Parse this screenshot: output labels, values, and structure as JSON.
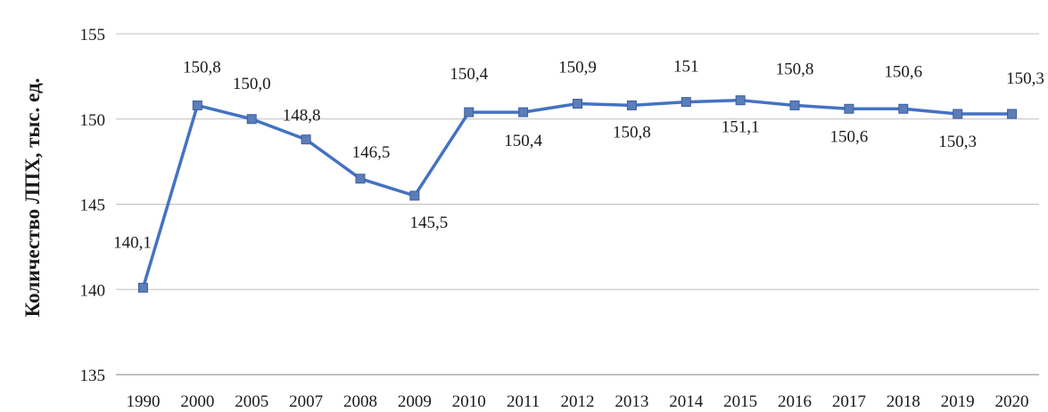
{
  "chart_data": {
    "type": "line",
    "title": "",
    "xlabel": "",
    "ylabel": "Количество ЛПХ, тыс. ед.",
    "ylim": [
      135,
      155
    ],
    "yticks": [
      "135",
      "140",
      "145",
      "150",
      "155"
    ],
    "categories": [
      "1990",
      "2000",
      "2005",
      "2007",
      "2008",
      "2009",
      "2010",
      "2011",
      "2012",
      "2013",
      "2014",
      "2015",
      "2016",
      "2017",
      "2018",
      "2019",
      "2020"
    ],
    "series": [
      {
        "values": [
          140.1,
          150.8,
          150.0,
          148.8,
          146.5,
          145.5,
          150.4,
          150.4,
          150.9,
          150.8,
          151.0,
          151.1,
          150.8,
          150.6,
          150.6,
          150.3,
          150.3
        ],
        "labels": [
          "140,1",
          "150,8",
          "150,0",
          "148,8",
          "146,5",
          "145,5",
          "150,4",
          "150,4",
          "150,9",
          "150,8",
          "151",
          "151,1",
          "150,8",
          "150,6",
          "150,6",
          "150,3",
          "150,3"
        ],
        "color": "#4472c4"
      }
    ],
    "grid": true,
    "legend": "none",
    "colors": {
      "line": "#4472c4",
      "marker": "#5b7db8",
      "grid": "#bfbfbf",
      "axis": "#808080"
    }
  }
}
